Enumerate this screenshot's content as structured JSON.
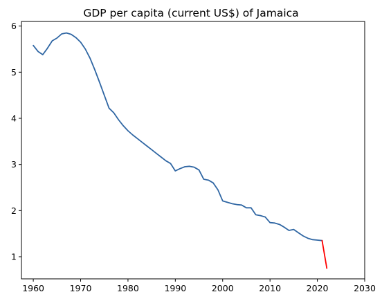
{
  "chart_data": {
    "type": "line",
    "title": "GDP per capita (current US$) of Jamaica",
    "xlabel": "",
    "ylabel": "",
    "xlim": [
      1957.5,
      2030
    ],
    "ylim": [
      0.52,
      6.1
    ],
    "x_ticks": [
      1960,
      1970,
      1980,
      1990,
      2000,
      2010,
      2020,
      2030
    ],
    "y_ticks": [
      1,
      2,
      3,
      4,
      5,
      6
    ],
    "grid": false,
    "series": [
      {
        "color": "#2f66a3",
        "x": [
          1960,
          1961,
          1962,
          1963,
          1964,
          1965,
          1966,
          1967,
          1968,
          1969,
          1970,
          1971,
          1972,
          1973,
          1974,
          1975,
          1976,
          1977,
          1978,
          1979,
          1980,
          1981,
          1982,
          1983,
          1984,
          1985,
          1986,
          1987,
          1988,
          1989,
          1990,
          1991,
          1992,
          1993,
          1994,
          1995,
          1996,
          1997,
          1998,
          1999,
          2000,
          2001,
          2002,
          2003,
          2004,
          2005,
          2006,
          2007,
          2008,
          2009,
          2010,
          2011,
          2012,
          2013,
          2014,
          2015,
          2016,
          2017,
          2018,
          2019,
          2020,
          2021
        ],
        "y": [
          5.58,
          5.45,
          5.38,
          5.52,
          5.68,
          5.74,
          5.83,
          5.85,
          5.82,
          5.75,
          5.65,
          5.5,
          5.3,
          5.05,
          4.78,
          4.5,
          4.22,
          4.12,
          3.97,
          3.84,
          3.73,
          3.64,
          3.56,
          3.48,
          3.4,
          3.32,
          3.24,
          3.16,
          3.08,
          3.02,
          2.86,
          2.91,
          2.95,
          2.96,
          2.94,
          2.88,
          2.68,
          2.66,
          2.6,
          2.45,
          2.21,
          2.18,
          2.15,
          2.13,
          2.12,
          2.06,
          2.06,
          1.91,
          1.89,
          1.86,
          1.74,
          1.73,
          1.7,
          1.64,
          1.57,
          1.59,
          1.52,
          1.45,
          1.4,
          1.37,
          1.36,
          1.35
        ]
      },
      {
        "color": "#ff0000",
        "x": [
          2021,
          2022
        ],
        "y": [
          1.35,
          0.75
        ]
      }
    ]
  }
}
